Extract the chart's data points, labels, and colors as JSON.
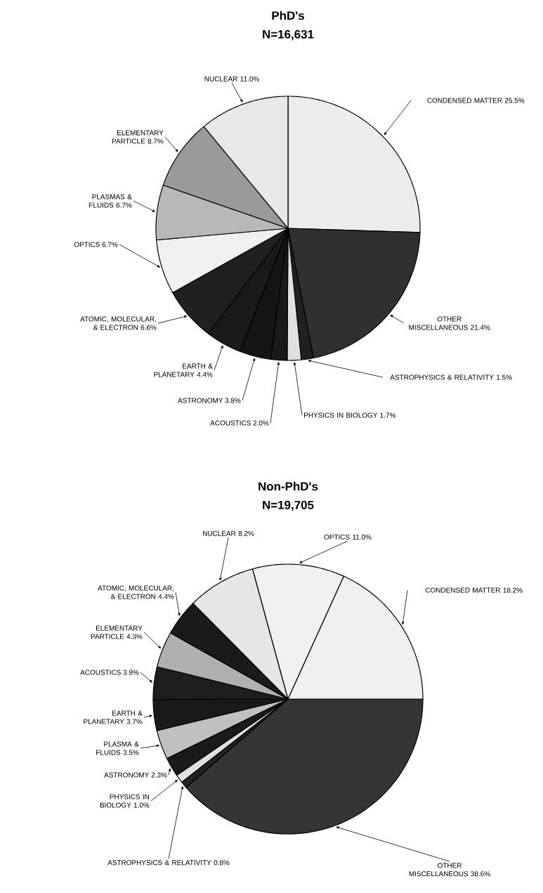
{
  "chart_data": [
    {
      "type": "pie",
      "title": "PhD's",
      "subtitle": "N=16,631",
      "categories": [
        "CONDENSED MATTER",
        "OTHER MISCELLANEOUS",
        "ASTROPHYSICS & RELATIVITY",
        "PHYSICS IN BIOLOGY",
        "ACOUSTICS",
        "ASTRONOMY",
        "EARTH & PLANETARY",
        "ATOMIC, MOLECULAR, & ELECTRON",
        "OPTICS",
        "PLASMAS & FLUIDS",
        "ELEMENTARY PARTICLE",
        "NUCLEAR"
      ],
      "values": [
        25.5,
        21.4,
        1.5,
        1.7,
        2.0,
        3.8,
        4.4,
        6.6,
        6.7,
        6.7,
        8.7,
        11.0
      ],
      "value_labels": [
        "25.5%",
        "21.4%",
        "1.5%",
        "1.7%",
        "2.0%",
        "3.8%",
        "4.4%",
        "6.6%",
        "6.7%",
        "6.7%",
        "8.7%",
        "11.0%"
      ],
      "colors": [
        "#ececec",
        "#303030",
        "#202020",
        "#e0e0e0",
        "#1a1a1a",
        "#151515",
        "#1a1a1a",
        "#202020",
        "#f0f0f0",
        "#b8b8b8",
        "#9a9a9a",
        "#e8e8e8"
      ]
    },
    {
      "type": "pie",
      "title": "Non-PhD's",
      "subtitle": "N=19,705",
      "categories": [
        "OTHER MISCELLANEOUS",
        "ASTROPHYSICS & RELATIVITY",
        "PHYSICS IN BIOLOGY",
        "ASTRONOMY",
        "PLASMA & FLUIDS",
        "EARTH & PLANETARY",
        "ACOUSTICS",
        "ELEMENTARY PARTICLE",
        "ATOMIC, MOLECULAR, & ELECTRON",
        "NUCLEAR",
        "OPTICS",
        "CONDENSED MATTER"
      ],
      "values": [
        38.6,
        0.8,
        1.0,
        2.3,
        3.5,
        3.7,
        3.9,
        4.3,
        4.4,
        8.2,
        11.0,
        18.2
      ],
      "value_labels": [
        "38.6%",
        "0.8%",
        "1.0%",
        "2.3%",
        "3.5%",
        "3.7%",
        "3.9%",
        "4.3%",
        "4.4%",
        "8.2%",
        "11.0%",
        "18.2%"
      ],
      "colors": [
        "#353535",
        "#222222",
        "#e0e0e0",
        "#1a1a1a",
        "#c0c0c0",
        "#1a1a1a",
        "#1e1e1e",
        "#b0b0b0",
        "#1a1a1a",
        "#e6e6e6",
        "#f0f0f0",
        "#efefef"
      ]
    }
  ]
}
